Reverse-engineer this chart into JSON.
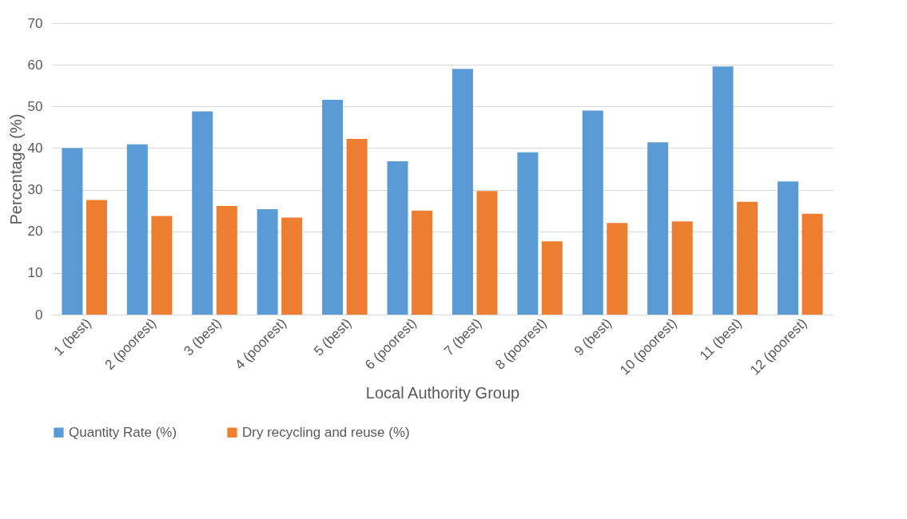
{
  "chart_data": {
    "type": "bar",
    "xlabel": "Local Authority Group",
    "ylabel": "Percentage (%)",
    "categories": [
      "1 (best)",
      "2 (poorest)",
      "3 (best)",
      "4 (poorest)",
      "5 (best)",
      "6 (poorest)",
      "7 (best)",
      "8 (poorest)",
      "9 (best)",
      "10 (poorest)",
      "11 (best)",
      "12 (poorest)"
    ],
    "series": [
      {
        "name": "Quantity Rate (%)",
        "color": "#5b9bd5",
        "values": [
          40,
          40.9,
          48.8,
          25.3,
          51.6,
          36.8,
          59.0,
          39.0,
          49.0,
          41.4,
          59.6,
          32.0
        ]
      },
      {
        "name": "Dry recycling and reuse (%)",
        "color": "#ed7d31",
        "values": [
          27.5,
          23.7,
          26.1,
          23.3,
          42.2,
          25.0,
          29.7,
          17.6,
          22.0,
          22.4,
          27.1,
          24.2
        ]
      }
    ],
    "ylim": [
      0,
      70
    ],
    "yticks": [
      0,
      10,
      20,
      30,
      40,
      50,
      60,
      70
    ],
    "grid": "y",
    "legend": "bottom"
  }
}
